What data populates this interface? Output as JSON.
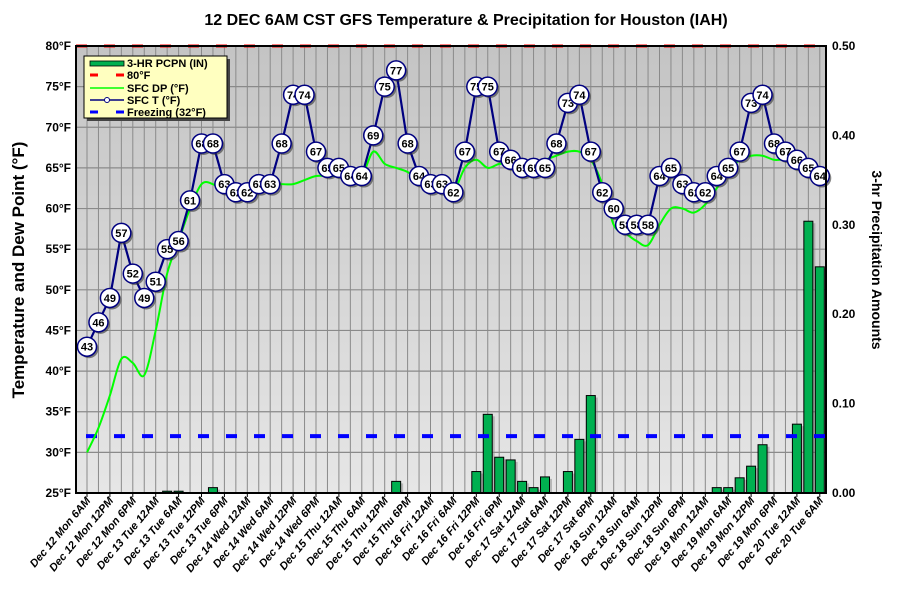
{
  "chart_data": {
    "type": "line",
    "title": "12 DEC 6AM CST GFS Temperature & Precipitation for Houston (IAH)",
    "ylabel": "Temperature and Dew Point (°F)",
    "y2label": "3-hr Precipitation Amounts",
    "ylim": [
      25,
      80
    ],
    "y2lim": [
      0,
      0.5
    ],
    "yticks": [
      "25°F",
      "30°F",
      "35°F",
      "40°F",
      "45°F",
      "50°F",
      "55°F",
      "60°F",
      "65°F",
      "70°F",
      "75°F",
      "80°F"
    ],
    "y2ticks": [
      "0.00",
      "0.10",
      "0.20",
      "0.30",
      "0.40",
      "0.50"
    ],
    "x_interval_hours": 3,
    "x_start": "Dec 12 Mon 6AM",
    "xticks": [
      "Dec 12 Mon 6AM",
      "Dec 12 Mon 12PM",
      "Dec 12 Mon 6PM",
      "Dec 13 Tue 12AM",
      "Dec 13 Tue 6AM",
      "Dec 13 Tue 12PM",
      "Dec 13 Tue 6PM",
      "Dec 14 Wed 12AM",
      "Dec 14 Wed 6AM",
      "Dec 14 Wed 12PM",
      "Dec 14 Wed 6PM",
      "Dec 15 Thu 12AM",
      "Dec 15 Thu 6AM",
      "Dec 15 Thu 12PM",
      "Dec 15 Thu 6PM",
      "Dec 16 Fri 12AM",
      "Dec 16 Fri 6AM",
      "Dec 16 Fri 12PM",
      "Dec 16 Fri 6PM",
      "Dec 17 Sat 12AM",
      "Dec 17 Sat 6AM",
      "Dec 17 Sat 12PM",
      "Dec 17 Sat 6PM",
      "Dec 18 Sun 12AM",
      "Dec 18 Sun 6AM",
      "Dec 18 Sun 12PM",
      "Dec 18 Sun 6PM",
      "Dec 19 Mon 12AM",
      "Dec 19 Mon 6AM",
      "Dec 19 Mon 12PM",
      "Dec 19 Mon 6PM",
      "Dec 20 Tue 12AM",
      "Dec 20 Tue 6AM"
    ],
    "grid": true,
    "legend_placement": "top-left",
    "series": [
      {
        "name": "3-HR PCPN  (IN)",
        "type": "bar",
        "axis": "right",
        "color": "#00b050",
        "values": [
          0,
          0,
          0,
          0,
          0,
          0,
          0,
          0.002,
          0.002,
          0,
          0,
          0.006,
          0,
          0,
          0,
          0,
          0,
          0,
          0,
          0,
          0,
          0,
          0,
          0,
          0,
          0,
          0,
          0.013,
          0,
          0,
          0,
          0,
          0,
          0,
          0.024,
          0.088,
          0.04,
          0.037,
          0.013,
          0.006,
          0.018,
          0,
          0.024,
          0.06,
          0.109,
          0,
          0,
          0,
          0,
          0,
          0,
          0,
          0,
          0,
          0,
          0.006,
          0.006,
          0.017,
          0.03,
          0.054,
          0,
          0,
          0.077,
          0.304,
          0.253
        ]
      },
      {
        "name": "80°F",
        "type": "hline",
        "value": 80,
        "color": "#ff0000"
      },
      {
        "name": "SFC DP (°F)",
        "type": "line",
        "color": "#00ff00",
        "values": [
          30,
          33,
          37,
          41.5,
          41,
          39.5,
          45,
          52,
          56,
          60,
          63,
          63,
          62,
          61.5,
          62,
          62.5,
          63,
          63,
          63,
          63.5,
          64,
          64,
          64,
          64,
          64,
          67,
          65.5,
          65,
          64.5,
          63.5,
          62.5,
          62,
          62,
          65,
          66,
          65,
          65.5,
          65.5,
          65.5,
          65.5,
          66,
          66.5,
          67,
          67,
          66,
          63,
          58,
          57,
          56,
          55.5,
          58,
          60,
          60,
          59.5,
          60.5,
          62.5,
          64.5,
          66,
          66.5,
          66.5,
          66,
          66,
          65.5,
          64.5,
          63.5
        ]
      },
      {
        "name": "SFC T (°F)",
        "type": "line",
        "color": "#000080",
        "values": [
          43,
          46,
          49,
          57,
          52,
          49,
          51,
          55,
          56,
          61,
          68,
          68,
          63,
          62,
          62,
          63,
          63,
          68,
          74,
          74,
          67,
          65,
          65,
          64,
          64,
          69,
          75,
          77,
          68,
          64,
          63,
          63,
          62,
          67,
          75,
          75,
          67,
          66,
          65,
          65,
          65,
          68,
          73,
          74,
          67,
          62,
          60,
          58,
          58,
          58,
          64,
          65,
          63,
          62,
          62,
          64,
          65,
          67,
          73,
          74,
          68,
          67,
          66,
          65,
          64
        ]
      },
      {
        "name": "Freezing (32°F)",
        "type": "hline",
        "value": 32,
        "color": "#0000ff"
      }
    ]
  }
}
